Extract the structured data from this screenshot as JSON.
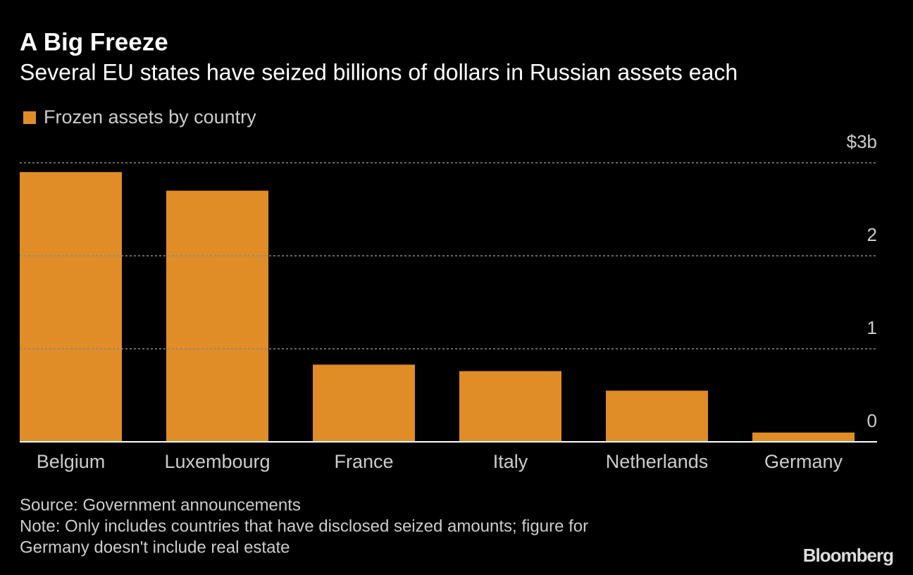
{
  "chart_data": {
    "type": "bar",
    "title": "A Big Freeze",
    "subtitle": "Several EU states have seized billions of dollars in Russian assets each",
    "series": [
      {
        "name": "Frozen assets by country",
        "color": "#e08c27",
        "values": [
          2.9,
          2.7,
          0.83,
          0.76,
          0.55,
          0.1
        ]
      }
    ],
    "categories": [
      "Belgium",
      "Luxembourg",
      "France",
      "Italy",
      "Netherlands",
      "Germany"
    ],
    "ylim": [
      0,
      3
    ],
    "yticks": [
      0,
      1,
      2,
      {
        "value": 3,
        "label": "$3b"
      }
    ],
    "grid": true,
    "source": "Source: Government announcements",
    "note": [
      "Note: Only includes countries that have disclosed seized amounts; figure for",
      "Germany doesn't include real estate"
    ],
    "logo": "Bloomberg"
  }
}
